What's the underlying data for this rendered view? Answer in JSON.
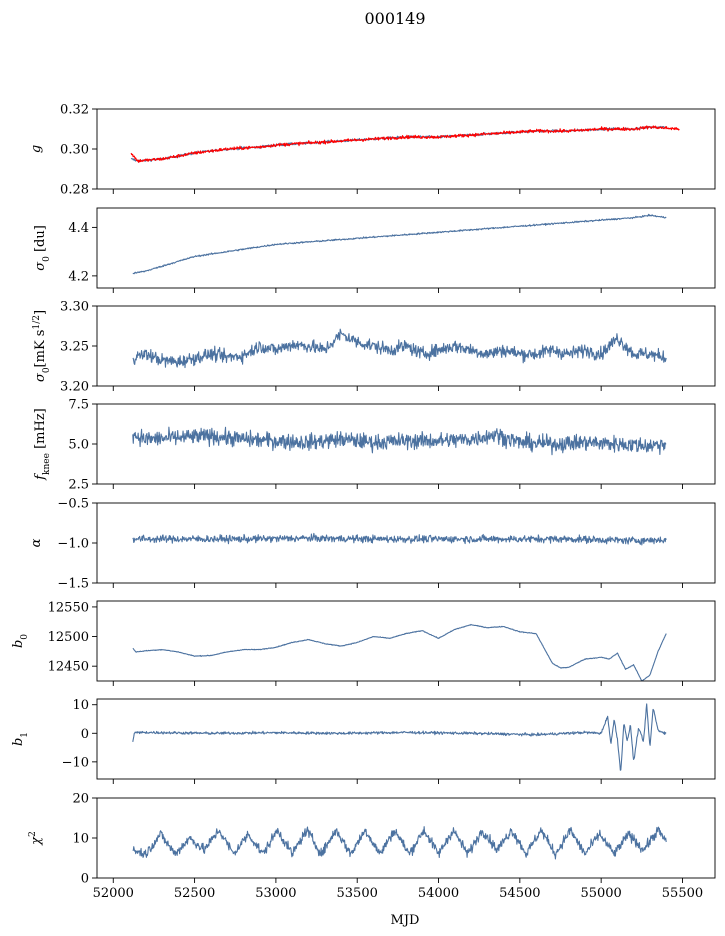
{
  "figure": {
    "title": "000149",
    "xlabel": "MJD"
  },
  "colors": {
    "series": "#4c72a0",
    "fit": "#ff0000"
  },
  "chart_data": [
    {
      "type": "line",
      "ylabel": "g",
      "ylabel_parts": [
        {
          "t": "g",
          "style": "italic"
        }
      ],
      "xlim": [
        51900,
        55700
      ],
      "ylim": [
        0.28,
        0.32
      ],
      "yticks": [
        0.28,
        0.3,
        0.32
      ],
      "ytick_labels": [
        "0.28",
        "0.30",
        "0.32"
      ],
      "x_tick_labels_shown": false,
      "series": [
        {
          "color": "#4c72a0",
          "noise": 0.0006,
          "x": [
            52110,
            52150,
            52300,
            52500,
            52700,
            52900,
            53000,
            53200,
            53400,
            53600,
            53800,
            54000,
            54200,
            54400,
            54600,
            54800,
            55000,
            55200,
            55300,
            55400
          ],
          "y": [
            0.295,
            0.294,
            0.295,
            0.298,
            0.3,
            0.301,
            0.302,
            0.303,
            0.304,
            0.305,
            0.306,
            0.306,
            0.307,
            0.308,
            0.309,
            0.309,
            0.31,
            0.31,
            0.311,
            0.311
          ]
        },
        {
          "color": "#ff0000",
          "noise": 0.0008,
          "x": [
            52110,
            52150,
            52300,
            52500,
            52700,
            52900,
            53000,
            53200,
            53400,
            53600,
            53800,
            54000,
            54200,
            54400,
            54600,
            54800,
            55000,
            55200,
            55300,
            55480
          ],
          "y": [
            0.298,
            0.294,
            0.295,
            0.298,
            0.3,
            0.301,
            0.302,
            0.303,
            0.304,
            0.305,
            0.306,
            0.306,
            0.307,
            0.308,
            0.309,
            0.309,
            0.31,
            0.31,
            0.311,
            0.31
          ]
        }
      ]
    },
    {
      "type": "line",
      "ylabel": "σ0 [du]",
      "ylabel_parts": [
        {
          "t": "σ",
          "style": "italic"
        },
        {
          "t": "0",
          "sub": true
        },
        {
          "t": " [du]"
        }
      ],
      "xlim": [
        51900,
        55700
      ],
      "ylim": [
        4.15,
        4.48
      ],
      "yticks": [
        4.2,
        4.4
      ],
      "ytick_labels": [
        "4.2",
        "4.4"
      ],
      "x_tick_labels_shown": false,
      "series": [
        {
          "color": "#4c72a0",
          "noise": 0.003,
          "x": [
            52120,
            52200,
            52300,
            52400,
            52500,
            52600,
            52700,
            52800,
            52900,
            53000,
            53200,
            53400,
            53600,
            53800,
            54000,
            54200,
            54400,
            54600,
            54800,
            55000,
            55200,
            55300,
            55400
          ],
          "y": [
            4.21,
            4.22,
            4.24,
            4.26,
            4.28,
            4.29,
            4.3,
            4.31,
            4.32,
            4.33,
            4.34,
            4.35,
            4.36,
            4.37,
            4.38,
            4.39,
            4.4,
            4.41,
            4.42,
            4.43,
            4.44,
            4.45,
            4.44
          ]
        }
      ]
    },
    {
      "type": "line",
      "ylabel": "σ0[mK s^1/2]",
      "ylabel_parts": [
        {
          "t": "σ",
          "style": "italic"
        },
        {
          "t": "0",
          "sub": true
        },
        {
          "t": "[mK s"
        },
        {
          "t": "1/2",
          "sup": true
        },
        {
          "t": "]"
        }
      ],
      "xlim": [
        51900,
        55700
      ],
      "ylim": [
        3.2,
        3.3
      ],
      "yticks": [
        3.2,
        3.25,
        3.3
      ],
      "ytick_labels": [
        "3.20",
        "3.25",
        "3.30"
      ],
      "x_tick_labels_shown": false,
      "series": [
        {
          "color": "#4c72a0",
          "noise": 0.008,
          "x": [
            52120,
            52200,
            52300,
            52400,
            52500,
            52600,
            52700,
            52800,
            52900,
            53000,
            53100,
            53200,
            53300,
            53400,
            53500,
            53600,
            53700,
            53800,
            53900,
            54000,
            54100,
            54200,
            54300,
            54400,
            54500,
            54600,
            54700,
            54800,
            54900,
            55000,
            55100,
            55200,
            55300,
            55400
          ],
          "y": [
            3.235,
            3.24,
            3.232,
            3.23,
            3.235,
            3.24,
            3.236,
            3.238,
            3.25,
            3.245,
            3.252,
            3.25,
            3.245,
            3.265,
            3.255,
            3.25,
            3.245,
            3.25,
            3.24,
            3.245,
            3.25,
            3.245,
            3.24,
            3.245,
            3.24,
            3.24,
            3.245,
            3.24,
            3.245,
            3.24,
            3.26,
            3.24,
            3.24,
            3.235
          ]
        }
      ]
    },
    {
      "type": "line",
      "ylabel": "fknee [mHz]",
      "ylabel_parts": [
        {
          "t": "f",
          "style": "italic"
        },
        {
          "t": "knee",
          "sub": true
        },
        {
          "t": " [mHz]"
        }
      ],
      "xlim": [
        51900,
        55700
      ],
      "ylim": [
        2.5,
        7.5
      ],
      "yticks": [
        2.5,
        5.0,
        7.5
      ],
      "ytick_labels": [
        "2.5",
        "5.0",
        "7.5"
      ],
      "x_tick_labels_shown": false,
      "series": [
        {
          "color": "#4c72a0",
          "noise": 0.5,
          "x": [
            52120,
            52200,
            52400,
            52600,
            52800,
            53000,
            53200,
            53400,
            53600,
            53800,
            54000,
            54200,
            54350,
            54500,
            54700,
            54900,
            55100,
            55300,
            55400
          ],
          "y": [
            5.6,
            5.3,
            5.4,
            5.5,
            5.3,
            5.2,
            5.1,
            5.3,
            5.1,
            5.2,
            5.2,
            5.3,
            5.6,
            5.1,
            5.0,
            5.1,
            5.0,
            4.9,
            5.0
          ]
        }
      ]
    },
    {
      "type": "line",
      "ylabel": "α",
      "ylabel_parts": [
        {
          "t": "α",
          "style": "italic"
        }
      ],
      "xlim": [
        51900,
        55700
      ],
      "ylim": [
        -1.5,
        -0.5
      ],
      "yticks": [
        -1.5,
        -1.0,
        -0.5
      ],
      "ytick_labels": [
        "−1.5",
        "−1.0",
        "−0.5"
      ],
      "x_tick_labels_shown": false,
      "series": [
        {
          "color": "#4c72a0",
          "noise": 0.045,
          "x": [
            52120,
            52400,
            52800,
            53200,
            53600,
            54000,
            54400,
            54800,
            55200,
            55400
          ],
          "y": [
            -0.95,
            -0.95,
            -0.95,
            -0.94,
            -0.95,
            -0.95,
            -0.95,
            -0.95,
            -0.97,
            -0.96
          ]
        }
      ]
    },
    {
      "type": "line",
      "ylabel": "b0",
      "ylabel_parts": [
        {
          "t": "b",
          "style": "italic"
        },
        {
          "t": "0",
          "sub": true
        }
      ],
      "xlim": [
        51900,
        55700
      ],
      "ylim": [
        12425,
        12560
      ],
      "yticks": [
        12450,
        12500,
        12550
      ],
      "ytick_labels": [
        "12450",
        "12500",
        "12550"
      ],
      "x_tick_labels_shown": false,
      "series": [
        {
          "color": "#4c72a0",
          "noise": 0.6,
          "x": [
            52120,
            52140,
            52200,
            52300,
            52400,
            52500,
            52600,
            52700,
            52800,
            52900,
            53000,
            53100,
            53200,
            53300,
            53400,
            53500,
            53600,
            53700,
            53800,
            53900,
            54000,
            54100,
            54200,
            54300,
            54400,
            54500,
            54600,
            54700,
            54750,
            54800,
            54900,
            55000,
            55050,
            55100,
            55150,
            55200,
            55250,
            55300,
            55350,
            55400
          ],
          "y": [
            12480,
            12474,
            12476,
            12478,
            12474,
            12467,
            12468,
            12474,
            12478,
            12478,
            12482,
            12490,
            12495,
            12488,
            12484,
            12490,
            12500,
            12497,
            12505,
            12510,
            12497,
            12512,
            12520,
            12515,
            12517,
            12508,
            12505,
            12455,
            12447,
            12448,
            12462,
            12465,
            12462,
            12472,
            12445,
            12452,
            12425,
            12435,
            12475,
            12505
          ]
        }
      ]
    },
    {
      "type": "line",
      "ylabel": "b1",
      "ylabel_parts": [
        {
          "t": "b",
          "style": "italic"
        },
        {
          "t": "1",
          "sub": true
        }
      ],
      "xlim": [
        51900,
        55700
      ],
      "ylim": [
        -16,
        12
      ],
      "yticks": [
        -10,
        0,
        10
      ],
      "ytick_labels": [
        "−10",
        "0",
        "10"
      ],
      "x_tick_labels_shown": false,
      "series": [
        {
          "color": "#4c72a0",
          "noise": 0.45,
          "x": [
            52120,
            52130,
            52200,
            52600,
            53000,
            53400,
            53800,
            54200,
            54600,
            54900,
            55000,
            55040,
            55060,
            55080,
            55100,
            55120,
            55140,
            55160,
            55180,
            55200,
            55230,
            55260,
            55280,
            55300,
            55320,
            55350,
            55400
          ],
          "y": [
            -3,
            0.2,
            0.3,
            0.0,
            0.2,
            0.0,
            0.3,
            0.0,
            -0.5,
            0.3,
            0.0,
            6,
            -4,
            5,
            -2,
            -14,
            4,
            -3,
            3,
            -10,
            2,
            -3,
            10,
            -5,
            9,
            1,
            0
          ]
        }
      ]
    },
    {
      "type": "line",
      "ylabel": "χ2",
      "ylabel_parts": [
        {
          "t": "χ",
          "style": "italic"
        },
        {
          "t": "2",
          "sup": true
        }
      ],
      "xlim": [
        51900,
        55700
      ],
      "ylim": [
        0,
        20
      ],
      "yticks": [
        0,
        10,
        20
      ],
      "ytick_labels": [
        "0",
        "10",
        "20"
      ],
      "x_tick_labels_shown": true,
      "xticks": [
        52000,
        52500,
        53000,
        53500,
        54000,
        54500,
        55000,
        55500
      ],
      "xtick_labels": [
        "52000",
        "52500",
        "53000",
        "53500",
        "54000",
        "54500",
        "55000",
        "55500"
      ],
      "series": [
        {
          "color": "#4c72a0",
          "noise": 1.2,
          "x": [
            52120,
            52200,
            52290,
            52380,
            52470,
            52560,
            52650,
            52740,
            52830,
            52920,
            53010,
            53100,
            53190,
            53280,
            53370,
            53460,
            53550,
            53640,
            53730,
            53820,
            53910,
            54000,
            54090,
            54180,
            54270,
            54360,
            54450,
            54540,
            54630,
            54720,
            54810,
            54900,
            54990,
            55080,
            55170,
            55260,
            55350,
            55400
          ],
          "y": [
            7,
            6,
            11,
            6,
            10,
            7,
            12,
            6,
            11,
            6,
            12,
            6,
            12,
            6,
            12,
            6,
            12,
            6,
            12,
            6,
            12,
            6,
            12,
            6,
            12,
            7,
            12,
            6,
            12,
            6,
            12,
            6,
            11,
            6,
            11,
            7,
            12,
            9
          ]
        }
      ]
    }
  ]
}
